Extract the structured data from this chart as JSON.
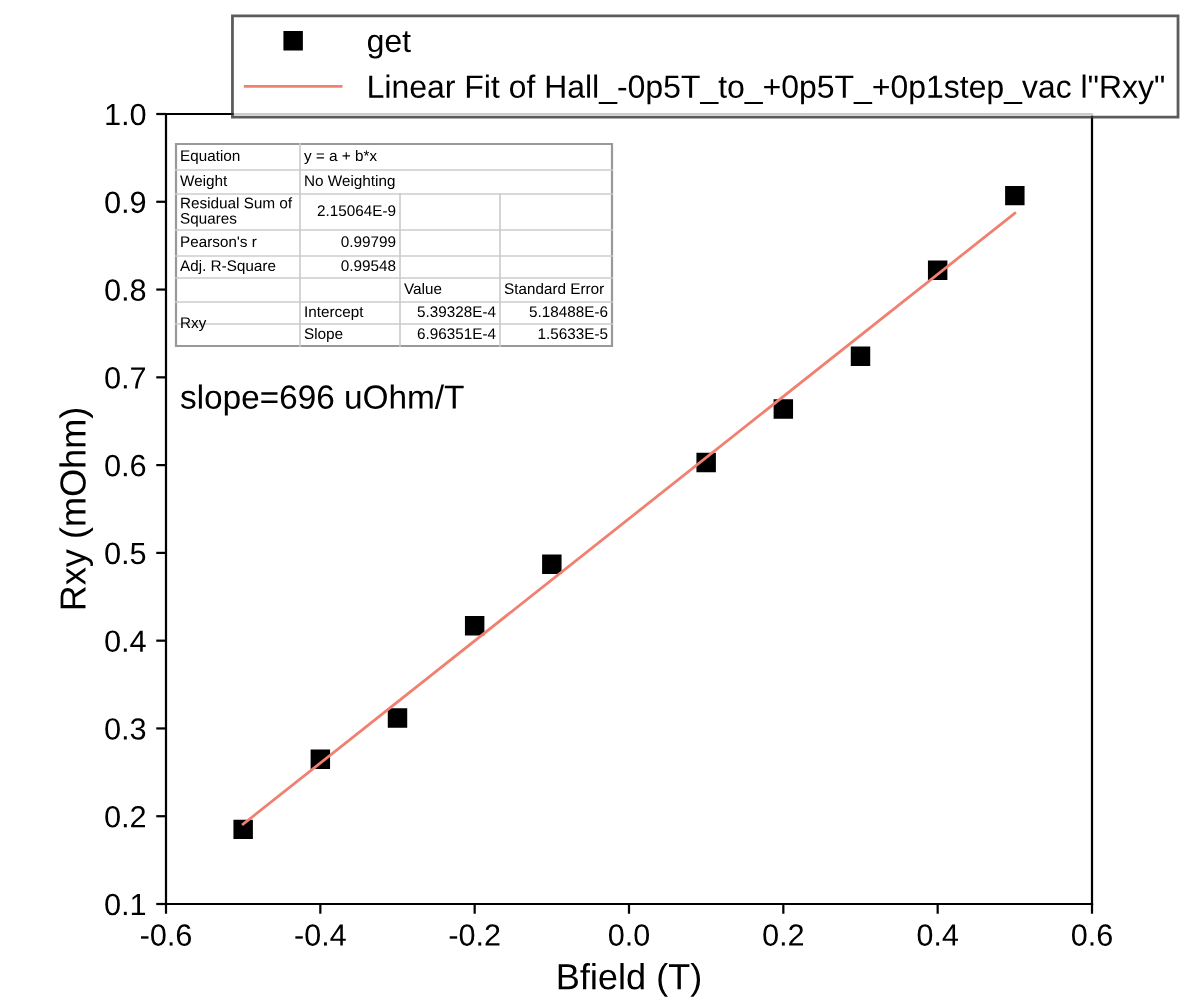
{
  "chart_data": {
    "type": "scatter",
    "xlabel": "Bfield (T)",
    "ylabel": "Rxy (mOhm)",
    "xlim": [
      -0.6,
      0.6
    ],
    "xticks": [
      -0.6,
      -0.4,
      -0.2,
      {
        "value": 0,
        "label": "0.0"
      },
      0.2,
      0.4,
      0.6
    ],
    "ylim": [
      0.1,
      1.0
    ],
    "yticks": [
      0.1,
      0.2,
      0.3,
      0.4,
      0.5,
      0.6,
      0.7,
      0.8,
      0.9,
      {
        "value": 1.0,
        "label": "1.0"
      }
    ],
    "grid": false,
    "legend": "top",
    "series": [
      {
        "name": "get",
        "marker": "square",
        "color": "#000000",
        "x": [
          -0.5,
          -0.4,
          -0.3,
          -0.2,
          -0.1,
          0.1,
          0.2,
          0.3,
          0.4,
          0.5
        ],
        "values": [
          0.185,
          0.265,
          0.312,
          0.417,
          0.487,
          0.603,
          0.664,
          0.724,
          0.822,
          0.907
        ]
      },
      {
        "name": "Linear Fit of Hall_-0p5T_to_+0p5T_+0p1step_vac l\"Rxy\"",
        "type": "line",
        "marker": "none",
        "color": "#f08070",
        "x": [
          -0.5,
          0.5
        ],
        "values": [
          0.191,
          0.887
        ]
      }
    ],
    "annotations": [
      "slope=696 uOhm/T",
      "Equation",
      "y = a + b*x",
      "Weight",
      "No Weighting",
      "Residual Sum of\nSquares",
      "2.15064E-9",
      "Pearson's r",
      "0.99799",
      "Adj. R-Square",
      "0.99548",
      "Value",
      "Standard Error",
      "Rxy",
      "Intercept",
      "5.39328E-4",
      "5.18488E-6",
      "Slope",
      "6.96351E-4",
      "1.5633E-5"
    ]
  }
}
